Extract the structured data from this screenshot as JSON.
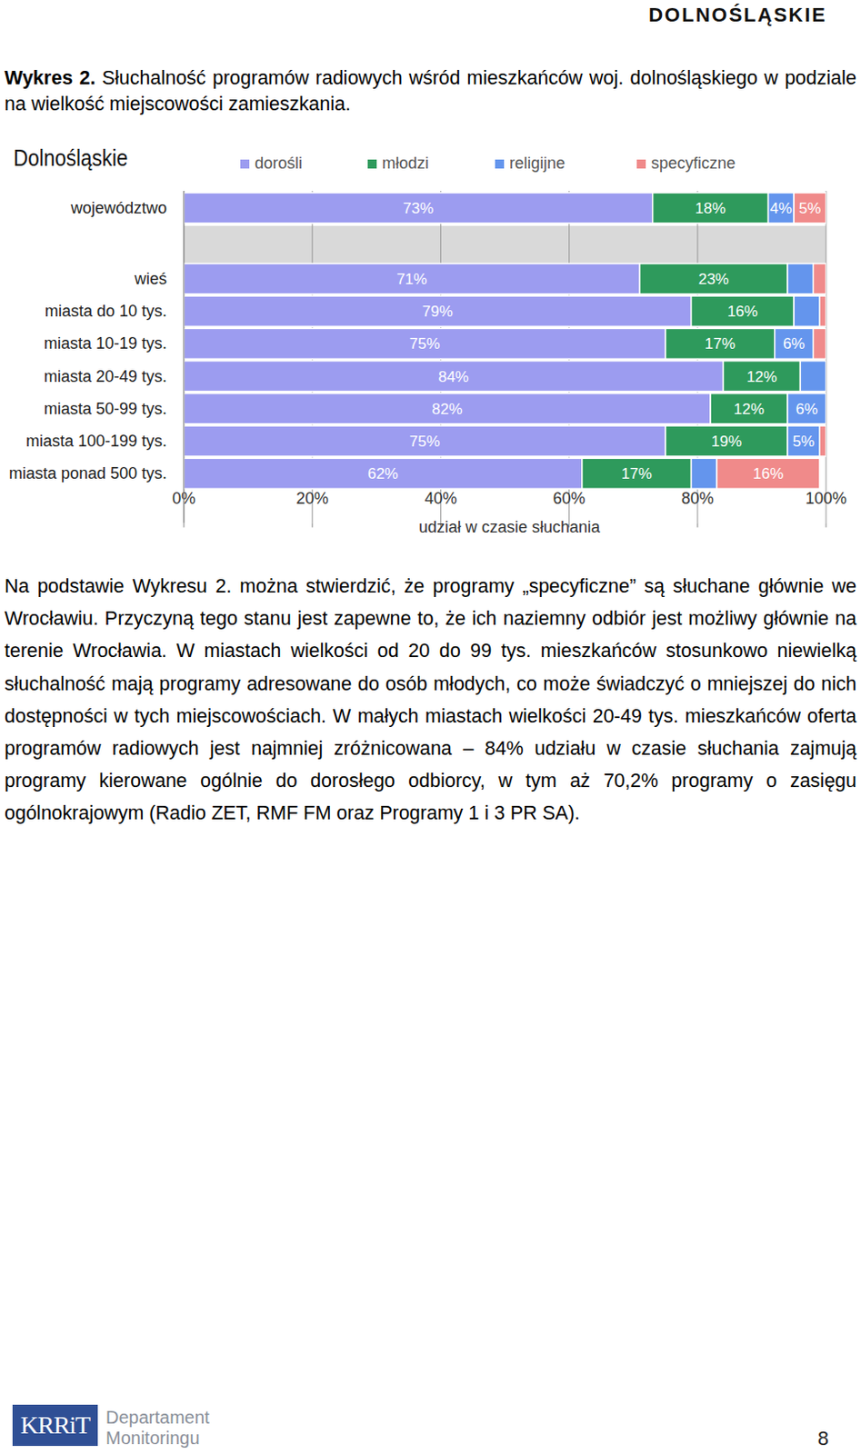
{
  "header": "DOLNOŚLĄSKIE",
  "caption": {
    "label": "Wykres 2.",
    "text": "Słuchalność programów radiowych wśród mieszkańców woj. dolnośląskiego w podziale na wielkość miejscowości zamieszkania."
  },
  "chart_data": {
    "type": "bar",
    "orientation": "horizontal",
    "stacked": true,
    "title": "Dolnośląskie",
    "categories": [
      "województwo",
      "wieś",
      "miasta do 10 tys.",
      "miasta 10-19 tys.",
      "miasta 20-49 tys.",
      "miasta 50-99 tys.",
      "miasta 100-199 tys.",
      "miasta ponad 500 tys."
    ],
    "series": [
      {
        "name": "dorośli",
        "color": "#9c9cf0",
        "values": [
          73,
          71,
          79,
          75,
          84,
          82,
          75,
          62
        ],
        "value_labels": [
          "73%",
          "71%",
          "79%",
          "75%",
          "84%",
          "82%",
          "75%",
          "62%"
        ]
      },
      {
        "name": "młodzi",
        "color": "#2e9a5c",
        "values": [
          18,
          23,
          16,
          17,
          12,
          12,
          19,
          17
        ],
        "value_labels": [
          "18%",
          "23%",
          "16%",
          "17%",
          "12%",
          "12%",
          "19%",
          "17%"
        ]
      },
      {
        "name": "religijne",
        "color": "#6495ed",
        "values": [
          4,
          4,
          4,
          6,
          4,
          6,
          5,
          4
        ],
        "value_labels": [
          "4%",
          null,
          null,
          "6%",
          null,
          "6%",
          "5%",
          null
        ]
      },
      {
        "name": "specyficzne",
        "color": "#f08a8a",
        "values": [
          5,
          2,
          1,
          2,
          0,
          0,
          1,
          16
        ],
        "value_labels": [
          "5%",
          null,
          null,
          null,
          null,
          null,
          null,
          "16%"
        ]
      }
    ],
    "xlim": [
      0,
      100
    ],
    "xticks": [
      {
        "value": 0,
        "label": "0%"
      },
      {
        "value": 20,
        "label": "20%"
      },
      {
        "value": 40,
        "label": "40%"
      },
      {
        "value": 60,
        "label": "60%"
      },
      {
        "value": 80,
        "label": "80%"
      },
      {
        "value": 100,
        "label": "100%"
      }
    ],
    "x_label": "udział w czasie słuchania",
    "data_labels": true,
    "legend": "top",
    "grid": true
  },
  "paragraph": "Na podstawie Wykresu 2. można stwierdzić, że programy „specyficzne” są słuchane głównie we Wrocławiu. Przyczyną tego stanu jest zapewne to, że ich naziemny odbiór jest możliwy głównie na terenie Wrocławia. W miastach wielkości od 20 do 99 tys. mieszkańców stosunkowo niewielką słuchalność mają programy adresowane do osób młodych, co może świadczyć o mniejszej do nich dostępności w tych miejscowościach. W małych miastach wielkości 20-49 tys. mieszkańców oferta programów radiowych jest najmniej zróżnicowana – 84% udziału w czasie słuchania zajmują programy kierowane ogólnie do dorosłego odbiorcy, w tym aż 70,2% programy o zasięgu ogólnokrajowym (Radio ZET, RMF FM oraz Programy 1 i 3 PR SA).",
  "footer": {
    "logo": "KRRiT",
    "department": [
      "Departament",
      "Monitoringu"
    ],
    "page": "8"
  }
}
